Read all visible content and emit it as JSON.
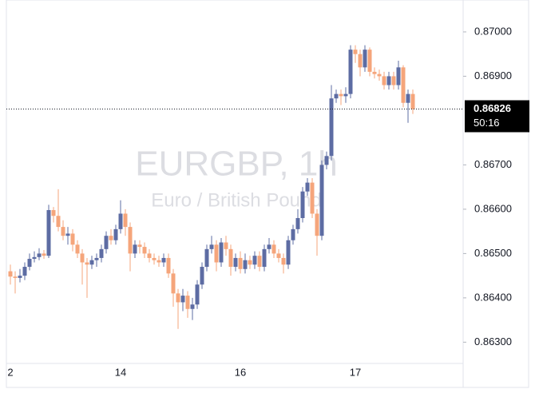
{
  "chart_data": {
    "type": "candlestick",
    "title": "EURGBP, 1h",
    "subtitle": "Euro / British Pound",
    "categories": [
      "2",
      null,
      null,
      null,
      null,
      null,
      null,
      null,
      null,
      null,
      null,
      null,
      null,
      null,
      null,
      null,
      null,
      null,
      null,
      null,
      null,
      null,
      null,
      "14",
      null,
      null,
      null,
      null,
      null,
      null,
      null,
      null,
      null,
      null,
      null,
      null,
      null,
      null,
      null,
      null,
      null,
      null,
      null,
      null,
      null,
      null,
      null,
      null,
      "16",
      null,
      null,
      null,
      null,
      null,
      null,
      null,
      null,
      null,
      null,
      null,
      null,
      null,
      null,
      null,
      null,
      null,
      null,
      null,
      null,
      null,
      null,
      null,
      "17",
      null,
      null,
      null,
      null,
      null,
      null,
      null,
      null,
      null,
      null,
      null,
      null
    ],
    "series": [
      {
        "up_color": "#5d6ca3",
        "down_color": "#f5a57b",
        "open": [
          0.8646,
          0.86448,
          0.86445,
          0.8645,
          0.8647,
          0.86488,
          0.86492,
          0.865,
          0.86495,
          0.86598,
          0.86585,
          0.8656,
          0.8654,
          0.86545,
          0.8652,
          0.865,
          0.8648,
          0.86475,
          0.86485,
          0.8649,
          0.8651,
          0.8654,
          0.8653,
          0.86555,
          0.8659,
          0.8656,
          0.865,
          0.8652,
          0.86515,
          0.865,
          0.8649,
          0.86485,
          0.8648,
          0.8649,
          0.86455,
          0.8641,
          0.8639,
          0.86405,
          0.86375,
          0.86385,
          0.8643,
          0.8647,
          0.8651,
          0.8652,
          0.8648,
          0.86525,
          0.8651,
          0.8647,
          0.8649,
          0.86465,
          0.86485,
          0.86475,
          0.86495,
          0.8647,
          0.8651,
          0.8652,
          0.865,
          0.8649,
          0.86475,
          0.8653,
          0.86555,
          0.8658,
          0.8664,
          0.8666,
          0.8659,
          0.8654,
          0.867,
          0.8672,
          0.8685,
          0.8686,
          0.86855,
          0.8686,
          0.8696,
          0.8695,
          0.8692,
          0.8696,
          0.8691,
          0.86905,
          0.869,
          0.8688,
          0.869,
          0.8688,
          0.8692,
          0.8684,
          0.8686
        ],
        "high": [
          0.86475,
          0.8646,
          0.86465,
          0.8648,
          0.865,
          0.86505,
          0.86512,
          0.86508,
          0.8661,
          0.86605,
          0.86645,
          0.86575,
          0.8656,
          0.86555,
          0.8653,
          0.8651,
          0.8649,
          0.86495,
          0.865,
          0.8652,
          0.8655,
          0.86555,
          0.86565,
          0.8662,
          0.866,
          0.8657,
          0.8653,
          0.8653,
          0.86525,
          0.8651,
          0.865,
          0.86495,
          0.865,
          0.865,
          0.86465,
          0.8642,
          0.8642,
          0.86415,
          0.864,
          0.8644,
          0.8648,
          0.8652,
          0.8654,
          0.8653,
          0.86535,
          0.8654,
          0.8652,
          0.865,
          0.86505,
          0.865,
          0.86495,
          0.86505,
          0.86505,
          0.8652,
          0.86535,
          0.8653,
          0.8651,
          0.865,
          0.8654,
          0.86565,
          0.866,
          0.8665,
          0.8667,
          0.8667,
          0.866,
          0.8671,
          0.8673,
          0.8688,
          0.8687,
          0.8687,
          0.86875,
          0.8697,
          0.8697,
          0.8696,
          0.8697,
          0.86965,
          0.8692,
          0.86915,
          0.8691,
          0.8691,
          0.8691,
          0.86935,
          0.86925,
          0.8687,
          0.8687
        ],
        "low": [
          0.8643,
          0.8641,
          0.86435,
          0.8644,
          0.86462,
          0.8648,
          0.86485,
          0.86488,
          0.8649,
          0.8657,
          0.8655,
          0.8653,
          0.8652,
          0.86505,
          0.8649,
          0.8643,
          0.864,
          0.86465,
          0.8647,
          0.8648,
          0.865,
          0.8652,
          0.8652,
          0.86545,
          0.8654,
          0.8646,
          0.8649,
          0.865,
          0.8649,
          0.8648,
          0.86475,
          0.8647,
          0.8647,
          0.86445,
          0.8638,
          0.8633,
          0.8637,
          0.86355,
          0.8635,
          0.86375,
          0.8642,
          0.8646,
          0.865,
          0.8646,
          0.8647,
          0.86495,
          0.8645,
          0.8646,
          0.86455,
          0.86455,
          0.86465,
          0.86465,
          0.8646,
          0.8646,
          0.865,
          0.8649,
          0.8648,
          0.86455,
          0.86465,
          0.8652,
          0.86545,
          0.8657,
          0.8663,
          0.8658,
          0.86495,
          0.8653,
          0.8669,
          0.8671,
          0.8684,
          0.86835,
          0.8684,
          0.8685,
          0.8693,
          0.869,
          0.8691,
          0.869,
          0.86895,
          0.8689,
          0.8687,
          0.8687,
          0.8687,
          0.8687,
          0.8683,
          0.86795,
          0.86815
        ],
        "close": [
          0.86448,
          0.86445,
          0.8645,
          0.8647,
          0.86488,
          0.86492,
          0.865,
          0.86495,
          0.86598,
          0.86585,
          0.8656,
          0.8654,
          0.86545,
          0.8652,
          0.865,
          0.8648,
          0.86475,
          0.86485,
          0.8649,
          0.8651,
          0.8654,
          0.8653,
          0.86555,
          0.8659,
          0.8656,
          0.865,
          0.8652,
          0.86515,
          0.865,
          0.8649,
          0.86485,
          0.8648,
          0.8649,
          0.86455,
          0.8641,
          0.8639,
          0.86405,
          0.86375,
          0.86385,
          0.8643,
          0.8647,
          0.8651,
          0.8652,
          0.8648,
          0.86525,
          0.8651,
          0.8647,
          0.8649,
          0.86465,
          0.86485,
          0.86475,
          0.86495,
          0.8647,
          0.8651,
          0.8652,
          0.865,
          0.8649,
          0.86475,
          0.8653,
          0.86555,
          0.8658,
          0.8664,
          0.8666,
          0.8659,
          0.8654,
          0.867,
          0.8672,
          0.8685,
          0.8686,
          0.86855,
          0.8686,
          0.8696,
          0.8695,
          0.8692,
          0.8696,
          0.8691,
          0.86905,
          0.869,
          0.8688,
          0.869,
          0.8688,
          0.8692,
          0.8684,
          0.8686,
          0.86826
        ]
      }
    ],
    "ylim": [
      0.86252,
      0.87072
    ],
    "yticks": [
      {
        "value": 0.863,
        "label": "0.86300"
      },
      {
        "value": 0.864,
        "label": "0.86400"
      },
      {
        "value": 0.865,
        "label": "0.86500"
      },
      {
        "value": 0.866,
        "label": "0.86600"
      },
      {
        "value": 0.867,
        "label": "0.86700"
      },
      {
        "value": 0.869,
        "label": "0.86900"
      },
      {
        "value": 0.87,
        "label": "0.87000"
      }
    ],
    "last_price": {
      "value": 0.86826,
      "label": "0.86826"
    },
    "countdown": "50:16"
  }
}
